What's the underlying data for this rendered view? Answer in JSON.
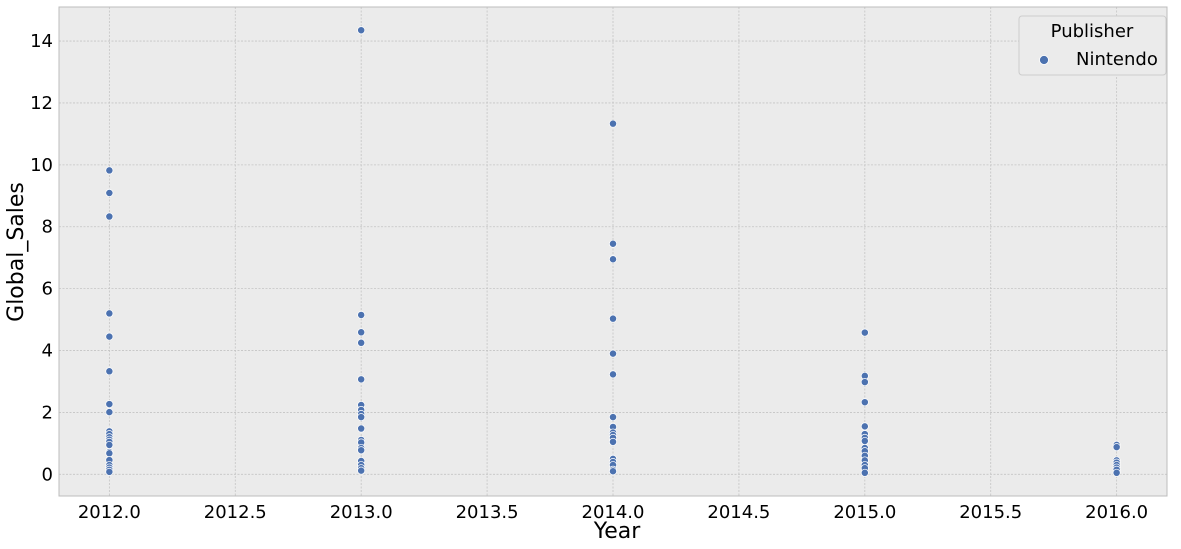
{
  "chart_data": {
    "type": "scatter",
    "title": "",
    "xlabel": "Year",
    "ylabel": "Global_Sales",
    "xlim": [
      2011.8,
      2016.2
    ],
    "ylim": [
      -0.7,
      15.1
    ],
    "xticks": [
      "2012.0",
      "2012.5",
      "2013.0",
      "2013.5",
      "2014.0",
      "2014.5",
      "2015.0",
      "2015.5",
      "2016.0"
    ],
    "yticks": [
      "0",
      "2",
      "4",
      "6",
      "8",
      "10",
      "12",
      "14"
    ],
    "grid": true,
    "legend": {
      "title": "Publisher",
      "position": "top-right"
    },
    "series": [
      {
        "name": "Nintendo",
        "color": "#4c72b0",
        "points": [
          {
            "x": 2012,
            "y": 9.82
          },
          {
            "x": 2012,
            "y": 9.09
          },
          {
            "x": 2012,
            "y": 8.33
          },
          {
            "x": 2012,
            "y": 5.2
          },
          {
            "x": 2012,
            "y": 4.45
          },
          {
            "x": 2012,
            "y": 3.33
          },
          {
            "x": 2012,
            "y": 2.27
          },
          {
            "x": 2012,
            "y": 2.01
          },
          {
            "x": 2012,
            "y": 1.39
          },
          {
            "x": 2012,
            "y": 1.3
          },
          {
            "x": 2012,
            "y": 1.2
          },
          {
            "x": 2012,
            "y": 1.12
          },
          {
            "x": 2012,
            "y": 1.05
          },
          {
            "x": 2012,
            "y": 0.95
          },
          {
            "x": 2012,
            "y": 0.72
          },
          {
            "x": 2012,
            "y": 0.68
          },
          {
            "x": 2012,
            "y": 0.46
          },
          {
            "x": 2012,
            "y": 0.3
          },
          {
            "x": 2012,
            "y": 0.22
          },
          {
            "x": 2012,
            "y": 0.15
          },
          {
            "x": 2012,
            "y": 0.08
          },
          {
            "x": 2013,
            "y": 14.35
          },
          {
            "x": 2013,
            "y": 5.15
          },
          {
            "x": 2013,
            "y": 4.59
          },
          {
            "x": 2013,
            "y": 4.25
          },
          {
            "x": 2013,
            "y": 3.07
          },
          {
            "x": 2013,
            "y": 2.24
          },
          {
            "x": 2013,
            "y": 2.08
          },
          {
            "x": 2013,
            "y": 1.95
          },
          {
            "x": 2013,
            "y": 1.85
          },
          {
            "x": 2013,
            "y": 1.48
          },
          {
            "x": 2013,
            "y": 1.11
          },
          {
            "x": 2013,
            "y": 1.03
          },
          {
            "x": 2013,
            "y": 0.85
          },
          {
            "x": 2013,
            "y": 0.78
          },
          {
            "x": 2013,
            "y": 0.43
          },
          {
            "x": 2013,
            "y": 0.3
          },
          {
            "x": 2013,
            "y": 0.2
          },
          {
            "x": 2013,
            "y": 0.12
          },
          {
            "x": 2014,
            "y": 11.33
          },
          {
            "x": 2014,
            "y": 7.45
          },
          {
            "x": 2014,
            "y": 6.95
          },
          {
            "x": 2014,
            "y": 5.03
          },
          {
            "x": 2014,
            "y": 3.9
          },
          {
            "x": 2014,
            "y": 3.23
          },
          {
            "x": 2014,
            "y": 1.85
          },
          {
            "x": 2014,
            "y": 1.53
          },
          {
            "x": 2014,
            "y": 1.35
          },
          {
            "x": 2014,
            "y": 1.27
          },
          {
            "x": 2014,
            "y": 1.18
          },
          {
            "x": 2014,
            "y": 1.05
          },
          {
            "x": 2014,
            "y": 0.5
          },
          {
            "x": 2014,
            "y": 0.4
          },
          {
            "x": 2014,
            "y": 0.3
          },
          {
            "x": 2014,
            "y": 0.15
          },
          {
            "x": 2014,
            "y": 0.1
          },
          {
            "x": 2015,
            "y": 4.58
          },
          {
            "x": 2015,
            "y": 3.18
          },
          {
            "x": 2015,
            "y": 2.98
          },
          {
            "x": 2015,
            "y": 2.33
          },
          {
            "x": 2015,
            "y": 1.55
          },
          {
            "x": 2015,
            "y": 1.3
          },
          {
            "x": 2015,
            "y": 1.18
          },
          {
            "x": 2015,
            "y": 1.08
          },
          {
            "x": 2015,
            "y": 0.85
          },
          {
            "x": 2015,
            "y": 0.75
          },
          {
            "x": 2015,
            "y": 0.6
          },
          {
            "x": 2015,
            "y": 0.45
          },
          {
            "x": 2015,
            "y": 0.3
          },
          {
            "x": 2015,
            "y": 0.2
          },
          {
            "x": 2015,
            "y": 0.05
          },
          {
            "x": 2016,
            "y": 0.95
          },
          {
            "x": 2016,
            "y": 0.88
          },
          {
            "x": 2016,
            "y": 0.45
          },
          {
            "x": 2016,
            "y": 0.38
          },
          {
            "x": 2016,
            "y": 0.3
          },
          {
            "x": 2016,
            "y": 0.22
          },
          {
            "x": 2016,
            "y": 0.15
          },
          {
            "x": 2016,
            "y": 0.05
          }
        ]
      }
    ]
  }
}
